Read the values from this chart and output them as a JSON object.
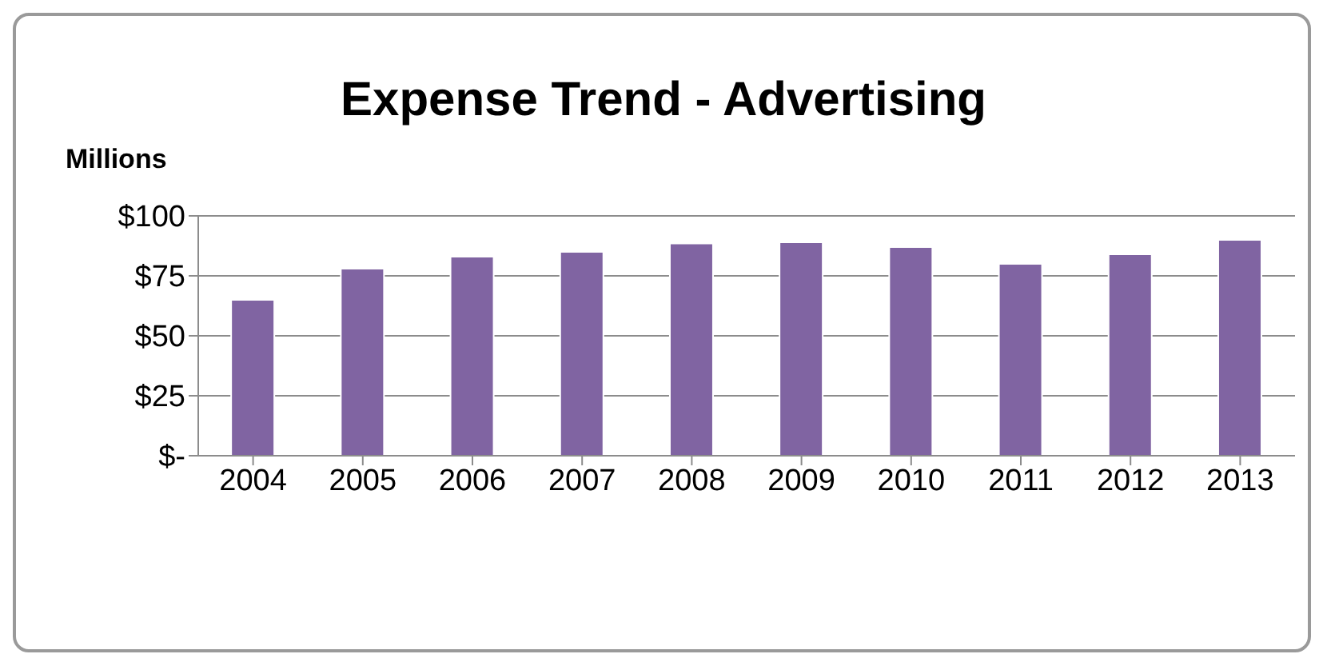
{
  "chart_data": {
    "type": "bar",
    "title": "Expense Trend - Advertising",
    "ylabel": "Millions",
    "categories": [
      "2004",
      "2005",
      "2006",
      "2007",
      "2008",
      "2009",
      "2010",
      "2011",
      "2012",
      "2013"
    ],
    "values": [
      65,
      78,
      83,
      85,
      88.5,
      89,
      87,
      80,
      84,
      90
    ],
    "color": "#8064a2",
    "ylim": [
      0,
      100
    ],
    "yticks": [
      {
        "value": 0,
        "label": "$-"
      },
      {
        "value": 25,
        "label": "$25"
      },
      {
        "value": 50,
        "label": "$50"
      },
      {
        "value": 75,
        "label": "$75"
      },
      {
        "value": 100,
        "label": "$100"
      }
    ],
    "grid": "y"
  }
}
